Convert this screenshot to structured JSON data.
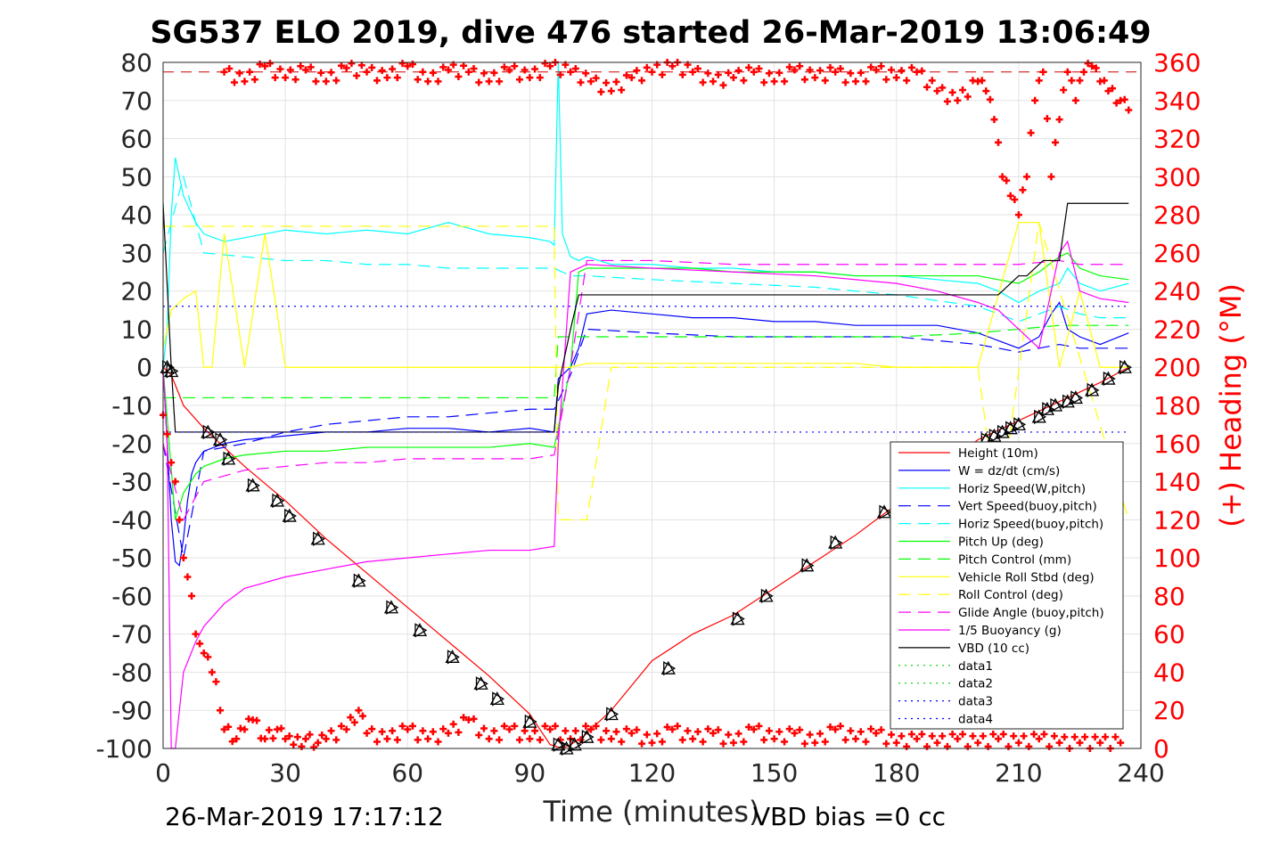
{
  "chart_data": {
    "type": "line",
    "title": "SG537 ELO 2019, dive 476 started 26-Mar-2019 13:06:49",
    "xlabel": "Time (minutes)",
    "ylabel_right": "(+) Heading (°M)",
    "xlim": [
      0,
      240
    ],
    "ylim_left": [
      -100,
      80
    ],
    "ylim_right": [
      0,
      360
    ],
    "xticks": [
      "0",
      "30",
      "60",
      "90",
      "120",
      "150",
      "180",
      "210",
      "240"
    ],
    "yticks_left": [
      "80",
      "70",
      "60",
      "50",
      "40",
      "30",
      "20",
      "10",
      "0",
      "-10",
      "-20",
      "-30",
      "-40",
      "-50",
      "-60",
      "-70",
      "-80",
      "-90",
      "-100"
    ],
    "yticks_right": [
      "360",
      "340",
      "320",
      "300",
      "280",
      "260",
      "240",
      "220",
      "200",
      "180",
      "160",
      "140",
      "120",
      "100",
      "80",
      "60",
      "40",
      "20",
      "0"
    ],
    "grid": true,
    "legend_position": "lower-right",
    "footer_left": "26-Mar-2019 17:17:12",
    "footer_right": "VBD bias =0 cc",
    "colors": {
      "height": "#ff0000",
      "w": "#0000ff",
      "horiz_w": "#00ffff",
      "pitch": "#00ff00",
      "roll": "#ffff00",
      "glide": "#ff00ff",
      "buoy": "#ff00ff",
      "vbd": "#000000",
      "heading": "#ff0000",
      "data": "#00cc00"
    },
    "series": [
      {
        "name": "Height (10m)",
        "style": "solid",
        "color": "#ff0000",
        "x": [
          0,
          2,
          5,
          10,
          20,
          30,
          40,
          50,
          60,
          70,
          80,
          90,
          95,
          98,
          100,
          103,
          110,
          120,
          130,
          140,
          150,
          160,
          170,
          180,
          190,
          200,
          210,
          220,
          230,
          237
        ],
        "y": [
          0,
          -2,
          -10,
          -16,
          -26,
          -35,
          -45,
          -54,
          -63,
          -72,
          -81,
          -91,
          -99,
          -100,
          -99,
          -97,
          -90,
          -77,
          -70,
          -65,
          -58,
          -51,
          -44,
          -36,
          -27,
          -19,
          -14,
          -9,
          -4,
          0
        ]
      },
      {
        "name": "W = dz/dt (cm/s)",
        "style": "solid",
        "color": "#0000ff",
        "x": [
          0,
          1,
          2,
          3,
          4,
          5,
          6,
          7,
          8,
          10,
          15,
          20,
          30,
          40,
          50,
          60,
          70,
          80,
          90,
          96,
          97,
          100,
          102,
          104,
          110,
          120,
          130,
          140,
          150,
          160,
          170,
          180,
          190,
          200,
          205,
          210,
          215,
          218,
          220,
          222,
          225,
          230,
          237
        ],
        "y": [
          0,
          -20,
          -40,
          -51,
          -52,
          -45,
          -35,
          -28,
          -25,
          -22,
          -20,
          -19,
          -18,
          -17,
          -17,
          -16,
          -16,
          -17,
          -16,
          -17,
          -3,
          0,
          5,
          14,
          15,
          14,
          13,
          13,
          12,
          12,
          11,
          11,
          11,
          9,
          7,
          5,
          8,
          14,
          17,
          10,
          8,
          6,
          9
        ]
      },
      {
        "name": "Horiz Speed(W,pitch)",
        "style": "solid",
        "color": "#00ffff",
        "x": [
          0,
          1,
          2,
          3,
          4,
          5,
          8,
          10,
          15,
          20,
          30,
          40,
          50,
          60,
          70,
          80,
          90,
          95,
          96,
          97,
          98,
          100,
          102,
          104,
          110,
          120,
          130,
          140,
          150,
          160,
          170,
          180,
          190,
          200,
          205,
          210,
          215,
          220,
          222,
          225,
          230,
          237
        ],
        "y": [
          0,
          10,
          40,
          55,
          50,
          45,
          38,
          35,
          33,
          34,
          36,
          35,
          36,
          35,
          38,
          35,
          34,
          33,
          32,
          85,
          35,
          29,
          28,
          29,
          27,
          27,
          26,
          26,
          25,
          25,
          24,
          24,
          23,
          22,
          20,
          17,
          20,
          22,
          26,
          22,
          20,
          22
        ]
      },
      {
        "name": "Vert Speed(buoy,pitch)",
        "style": "dashed",
        "color": "#0000ff",
        "x": [
          0,
          5,
          10,
          20,
          30,
          40,
          50,
          60,
          70,
          80,
          90,
          96,
          100,
          104,
          120,
          140,
          160,
          180,
          200,
          205,
          210,
          215,
          220,
          225,
          230,
          237
        ],
        "y": [
          -20,
          -50,
          -22,
          -20,
          -17,
          -15,
          -14,
          -13,
          -13,
          -12,
          -11,
          -11,
          -2,
          10,
          9,
          8,
          8,
          8,
          6,
          5,
          4,
          5,
          6,
          5,
          5,
          5
        ]
      },
      {
        "name": "Horiz Speed(buoy,pitch)",
        "style": "dashed",
        "color": "#00ffff",
        "x": [
          0,
          5,
          10,
          20,
          30,
          40,
          50,
          60,
          70,
          80,
          90,
          96,
          100,
          104,
          120,
          140,
          160,
          180,
          200,
          205,
          210,
          215,
          220,
          225,
          230,
          237
        ],
        "y": [
          30,
          50,
          30,
          29,
          28,
          28,
          27,
          27,
          26,
          26,
          26,
          26,
          24,
          24,
          23,
          22,
          21,
          19,
          16,
          14,
          12,
          14,
          16,
          14,
          13,
          13
        ]
      },
      {
        "name": "Pitch Up (deg)",
        "style": "solid",
        "color": "#00ff00",
        "x": [
          0,
          3,
          5,
          8,
          10,
          15,
          20,
          30,
          40,
          50,
          60,
          70,
          80,
          90,
          96,
          100,
          102,
          104,
          110,
          120,
          130,
          140,
          150,
          160,
          170,
          180,
          190,
          200,
          205,
          210,
          215,
          220,
          222,
          225,
          230,
          237
        ],
        "y": [
          0,
          -40,
          -33,
          -28,
          -26,
          -24,
          -23,
          -22,
          -22,
          -21,
          -21,
          -21,
          -21,
          -20,
          -21,
          0,
          25,
          26,
          26,
          26,
          26,
          25,
          25,
          25,
          24,
          24,
          24,
          24,
          23,
          22,
          25,
          29,
          30,
          26,
          24,
          23
        ]
      },
      {
        "name": "Pitch Control (mm)",
        "style": "dashed",
        "color": "#00ff00",
        "x": [
          0,
          3,
          10,
          96,
          97,
          102,
          120,
          180,
          200,
          210,
          220,
          237
        ],
        "y": [
          -8,
          -8,
          -8,
          -8,
          8,
          8,
          8,
          8,
          9,
          10,
          11,
          11
        ]
      },
      {
        "name": "Vehicle Roll Stbd (deg)",
        "style": "solid",
        "color": "#ffff00",
        "x": [
          0,
          2,
          5,
          8,
          10,
          12,
          15,
          20,
          25,
          30,
          40,
          50,
          60,
          70,
          80,
          90,
          96,
          100,
          104,
          110,
          120,
          130,
          140,
          150,
          160,
          170,
          180,
          190,
          200,
          210,
          215,
          220,
          225,
          230,
          237
        ],
        "y": [
          5,
          15,
          18,
          20,
          0,
          0,
          35,
          0,
          35,
          0,
          0,
          0,
          0,
          0,
          0,
          0,
          0,
          0,
          1,
          1,
          1,
          1,
          1,
          1,
          1,
          1,
          0,
          0,
          0,
          38,
          38,
          0,
          20,
          0,
          0
        ]
      },
      {
        "name": "Roll Control (deg)",
        "style": "dashed",
        "color": "#ffff00",
        "x": [
          0,
          10,
          96,
          97,
          104,
          110,
          200,
          205,
          215,
          237
        ],
        "y": [
          37,
          37,
          37,
          -40,
          -40,
          0,
          0,
          -40,
          38,
          -40
        ]
      },
      {
        "name": "Glide Angle (buoy,pitch)",
        "style": "dashed",
        "color": "#ff00ff",
        "x": [
          0,
          5,
          10,
          20,
          30,
          40,
          50,
          60,
          70,
          80,
          90,
          96,
          100,
          104,
          120,
          140,
          160,
          180,
          200,
          210,
          220,
          225,
          237
        ],
        "y": [
          -20,
          -40,
          -30,
          -27,
          -26,
          -25,
          -25,
          -24,
          -24,
          -24,
          -24,
          -23,
          0,
          28,
          28,
          27,
          27,
          27,
          27,
          27,
          28,
          27,
          27
        ]
      },
      {
        "name": "1/5 Buoyancy (g)",
        "style": "solid",
        "color": "#ff00ff",
        "x": [
          0,
          1,
          2,
          3,
          5,
          8,
          10,
          15,
          20,
          30,
          40,
          50,
          60,
          70,
          80,
          90,
          96,
          97,
          100,
          104,
          120,
          140,
          160,
          180,
          190,
          200,
          205,
          210,
          215,
          220,
          222,
          225,
          230,
          237
        ],
        "y": [
          0,
          -20,
          -100,
          -100,
          -80,
          -72,
          -68,
          -62,
          -58,
          -55,
          -53,
          -51,
          -50,
          -49,
          -48,
          -48,
          -47,
          -20,
          25,
          27,
          26,
          25,
          24,
          22,
          20,
          17,
          15,
          10,
          5,
          30,
          33,
          20,
          18,
          17
        ]
      },
      {
        "name": "VBD (10 cc)",
        "style": "solid",
        "color": "#000000",
        "x": [
          0,
          2,
          3,
          10,
          20,
          96,
          97,
          100,
          102,
          104,
          120,
          190,
          205,
          210,
          212,
          216,
          220,
          222,
          237
        ],
        "y": [
          43,
          0,
          -17,
          -17,
          -17,
          -17,
          -5,
          10,
          19,
          19,
          19,
          19,
          19,
          24,
          24,
          28,
          28,
          43,
          43
        ]
      },
      {
        "name": "data1",
        "style": "dotted",
        "color": "#00cc00",
        "x": [],
        "y": []
      },
      {
        "name": "data2",
        "style": "dotted",
        "color": "#00cc00",
        "x": [],
        "y": []
      },
      {
        "name": "data3",
        "style": "dotted",
        "color": "#0000ff",
        "x": [
          0,
          237
        ],
        "y": [
          16,
          16
        ]
      },
      {
        "name": "data4",
        "style": "dotted",
        "color": "#0000ff",
        "x": [
          0,
          237
        ],
        "y": [
          -17,
          -17
        ]
      }
    ],
    "reference_line": {
      "axis": "right",
      "value": 355,
      "color": "#cc0000",
      "style": "dashed"
    },
    "heading": {
      "axis": "right",
      "x": [
        0,
        1,
        2,
        3,
        4,
        5,
        6,
        7,
        8,
        9,
        10,
        11,
        12,
        13,
        14,
        15,
        18,
        20,
        22,
        25,
        28,
        30,
        32,
        35,
        38,
        40,
        45,
        48,
        50,
        55,
        60,
        65,
        70,
        75,
        80,
        85,
        90,
        95,
        100,
        105,
        110,
        115,
        120,
        125,
        130,
        135,
        140,
        145,
        150,
        155,
        160,
        165,
        170,
        175,
        180,
        185,
        190,
        195,
        200,
        205,
        210,
        215,
        220,
        225,
        230,
        235
      ],
      "y": [
        175,
        165,
        150,
        140,
        120,
        100,
        90,
        80,
        60,
        55,
        50,
        48,
        40,
        35,
        20,
        10,
        5,
        10,
        15,
        5,
        10,
        5,
        2,
        5,
        3,
        5,
        10,
        20,
        8,
        5,
        10,
        5,
        8,
        15,
        5,
        10,
        5,
        10,
        5,
        10,
        5,
        8,
        3,
        10,
        5,
        8,
        3,
        10,
        5,
        8,
        3,
        10,
        5,
        8,
        3,
        5,
        3,
        5,
        3,
        5,
        3,
        5,
        3,
        3,
        3,
        3
      ]
    },
    "heading_top": {
      "axis": "right",
      "x": [
        15,
        20,
        25,
        30,
        35,
        40,
        45,
        50,
        55,
        60,
        65,
        70,
        75,
        80,
        85,
        90,
        95,
        100,
        105,
        110,
        115,
        120,
        125,
        130,
        135,
        140,
        145,
        150,
        155,
        160,
        165,
        170,
        175,
        180,
        185,
        190,
        195,
        200,
        202,
        204,
        206,
        208,
        210,
        212,
        214,
        216,
        218,
        220,
        222,
        224,
        226,
        228,
        230,
        232,
        235,
        237
      ],
      "y": [
        355,
        350,
        358,
        352,
        356,
        350,
        357,
        355,
        352,
        358,
        350,
        356,
        355,
        350,
        356,
        352,
        358,
        355,
        350,
        345,
        352,
        355,
        358,
        355,
        350,
        352,
        355,
        350,
        356,
        352,
        355,
        350,
        356,
        352,
        355,
        345,
        340,
        350,
        345,
        330,
        300,
        290,
        280,
        300,
        340,
        355,
        300,
        330,
        355,
        340,
        355,
        358,
        350,
        345,
        340,
        335
      ]
    },
    "markers": {
      "note": "open triangles along descent/ascent",
      "x": [
        1,
        2,
        11,
        14,
        16,
        22,
        28,
        31,
        38,
        48,
        56,
        63,
        71,
        78,
        82,
        90,
        97,
        99,
        101,
        104,
        110,
        124,
        141,
        148,
        158,
        165,
        177,
        202,
        204,
        206,
        208,
        210,
        215,
        217,
        219,
        222,
        224,
        228,
        232,
        236
      ],
      "y": [
        0,
        -1,
        -17,
        -19,
        -24,
        -31,
        -35,
        -39,
        -45,
        -56,
        -63,
        -69,
        -76,
        -83,
        -87,
        -93,
        -99,
        -100,
        -99,
        -97,
        -91,
        -79,
        -66,
        -60,
        -52,
        -46,
        -38,
        -19,
        -18,
        -17,
        -16,
        -15,
        -13,
        -11,
        -10,
        -9,
        -8,
        -6,
        -3,
        0
      ]
    }
  }
}
